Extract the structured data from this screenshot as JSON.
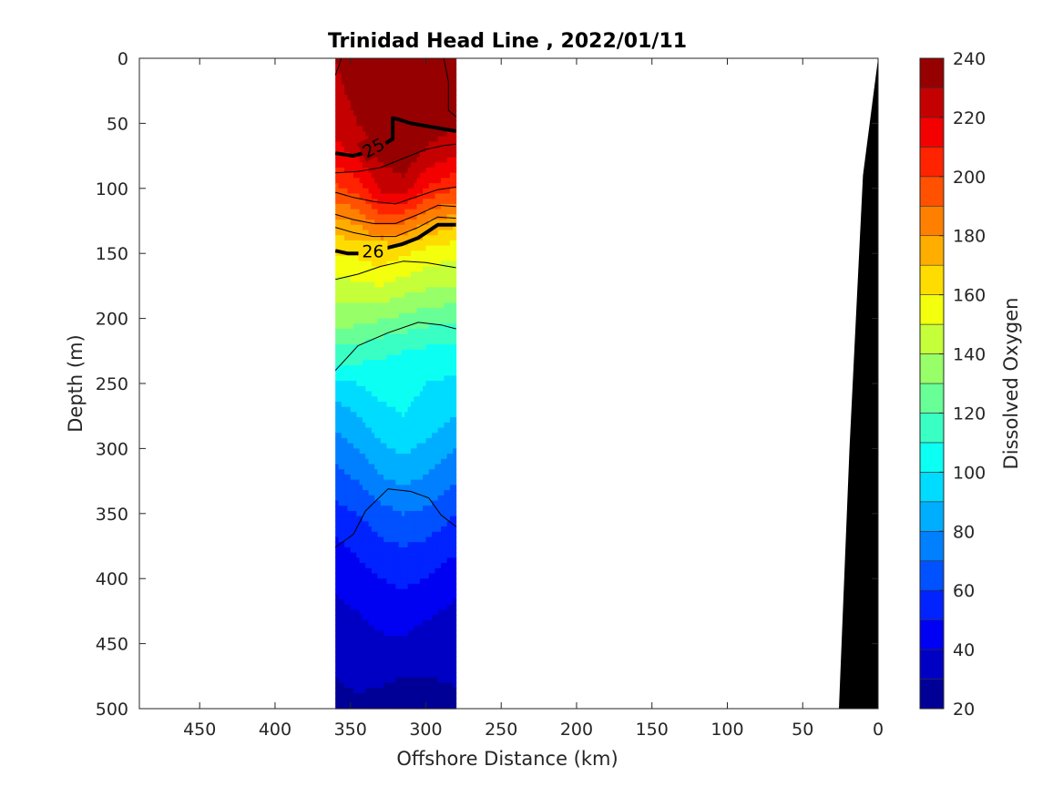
{
  "chart_data": {
    "type": "heatmap",
    "title": "Trinidad Head Line , 2022/01/11",
    "xlabel": "Offshore Distance (km)",
    "ylabel": "Depth (m)",
    "colorbar_label": "Dissolved Oxygen",
    "xlim": [
      490,
      0
    ],
    "ylim": [
      0,
      500
    ],
    "x_ticks": [
      450,
      400,
      350,
      300,
      250,
      200,
      150,
      100,
      50,
      0
    ],
    "y_ticks": [
      0,
      50,
      100,
      150,
      200,
      250,
      300,
      350,
      400,
      450,
      500
    ],
    "colorbar_ticks": [
      240,
      220,
      200,
      180,
      160,
      140,
      120,
      100,
      80,
      60,
      40,
      20
    ],
    "colorbar_range": [
      20,
      240
    ],
    "colorbar_levels": 22,
    "colormap": "jet",
    "section_range_km": [
      280,
      360
    ],
    "oxygen_section": {
      "offshore_km": [
        360,
        345,
        330,
        315,
        300,
        280
      ],
      "depth_m": [
        0,
        25,
        50,
        75,
        100,
        125,
        150,
        175,
        200,
        225,
        250,
        275,
        300,
        325,
        350,
        375,
        400,
        425,
        450,
        475,
        500
      ],
      "values": [
        [
          230,
          235,
          240,
          240,
          238,
          235
        ],
        [
          228,
          233,
          240,
          240,
          238,
          234
        ],
        [
          225,
          230,
          238,
          240,
          236,
          232
        ],
        [
          215,
          222,
          232,
          236,
          228,
          220
        ],
        [
          198,
          205,
          222,
          226,
          210,
          200
        ],
        [
          178,
          182,
          195,
          192,
          182,
          174
        ],
        [
          160,
          162,
          167,
          162,
          156,
          152
        ],
        [
          146,
          148,
          150,
          145,
          142,
          140
        ],
        [
          135,
          134,
          131,
          128,
          124,
          122
        ],
        [
          118,
          116,
          112,
          110,
          108,
          106
        ],
        [
          98,
          100,
          104,
          104,
          100,
          98
        ],
        [
          84,
          90,
          97,
          100,
          96,
          90
        ],
        [
          74,
          80,
          88,
          92,
          88,
          80
        ],
        [
          66,
          70,
          78,
          82,
          78,
          70
        ],
        [
          56,
          60,
          66,
          70,
          68,
          60
        ],
        [
          48,
          52,
          58,
          60,
          58,
          52
        ],
        [
          42,
          46,
          50,
          52,
          50,
          44
        ],
        [
          38,
          40,
          44,
          46,
          42,
          38
        ],
        [
          34,
          36,
          38,
          38,
          35,
          34
        ],
        [
          30,
          32,
          32,
          30,
          30,
          31
        ],
        [
          28,
          28,
          26,
          24,
          26,
          28
        ]
      ]
    },
    "density_contours": [
      {
        "level": "25",
        "bold": true,
        "points": [
          [
            360,
            73
          ],
          [
            348,
            75
          ],
          [
            333,
            70
          ],
          [
            322,
            62
          ],
          [
            322,
            46
          ],
          [
            318,
            47
          ],
          [
            310,
            50
          ],
          [
            295,
            53
          ],
          [
            280,
            56
          ]
        ]
      },
      {
        "level": "26",
        "bold": true,
        "points": [
          [
            360,
            148
          ],
          [
            352,
            150
          ],
          [
            343,
            150
          ],
          [
            330,
            147
          ],
          [
            316,
            143
          ],
          [
            305,
            138
          ],
          [
            292,
            128
          ],
          [
            280,
            128
          ]
        ]
      },
      {
        "level": "",
        "bold": false,
        "points": [
          [
            360,
            88
          ],
          [
            345,
            87
          ],
          [
            330,
            84
          ],
          [
            315,
            77
          ],
          [
            300,
            70
          ],
          [
            288,
            67
          ],
          [
            280,
            66
          ]
        ]
      },
      {
        "level": "",
        "bold": false,
        "points": [
          [
            360,
            103
          ],
          [
            348,
            107
          ],
          [
            335,
            110
          ],
          [
            320,
            112
          ],
          [
            305,
            106
          ],
          [
            292,
            101
          ],
          [
            280,
            99
          ]
        ]
      },
      {
        "level": "",
        "bold": false,
        "points": [
          [
            360,
            120
          ],
          [
            348,
            124
          ],
          [
            335,
            127
          ],
          [
            320,
            127
          ],
          [
            305,
            120
          ],
          [
            292,
            113
          ],
          [
            280,
            114
          ]
        ]
      },
      {
        "level": "",
        "bold": false,
        "points": [
          [
            360,
            130
          ],
          [
            348,
            134
          ],
          [
            335,
            137
          ],
          [
            320,
            137
          ],
          [
            305,
            130
          ],
          [
            292,
            122
          ],
          [
            280,
            123
          ]
        ]
      },
      {
        "level": "",
        "bold": false,
        "points": [
          [
            360,
            170
          ],
          [
            345,
            166
          ],
          [
            330,
            160
          ],
          [
            315,
            156
          ],
          [
            300,
            157
          ],
          [
            285,
            160
          ],
          [
            280,
            161
          ]
        ]
      },
      {
        "level": "",
        "bold": false,
        "points": [
          [
            360,
            240
          ],
          [
            345,
            221
          ],
          [
            325,
            211
          ],
          [
            305,
            203
          ],
          [
            290,
            205
          ],
          [
            280,
            208
          ]
        ]
      },
      {
        "level": "",
        "bold": false,
        "points": [
          [
            360,
            376
          ],
          [
            348,
            366
          ],
          [
            340,
            348
          ],
          [
            325,
            331
          ],
          [
            310,
            333
          ],
          [
            298,
            338
          ],
          [
            290,
            351
          ],
          [
            280,
            360
          ]
        ]
      },
      {
        "level": "",
        "bold": false,
        "points": [
          [
            356,
            0
          ],
          [
            360,
            13
          ]
        ]
      },
      {
        "level": "",
        "bold": false,
        "points": [
          [
            288,
            0
          ],
          [
            285,
            18
          ],
          [
            285,
            40
          ],
          [
            280,
            45
          ]
        ]
      }
    ],
    "bathymetry": {
      "fill": "#000000",
      "points": [
        [
          0,
          0
        ],
        [
          0,
          500
        ],
        [
          26,
          500
        ],
        [
          19,
          300
        ],
        [
          10,
          90
        ],
        [
          0,
          0
        ]
      ]
    }
  }
}
